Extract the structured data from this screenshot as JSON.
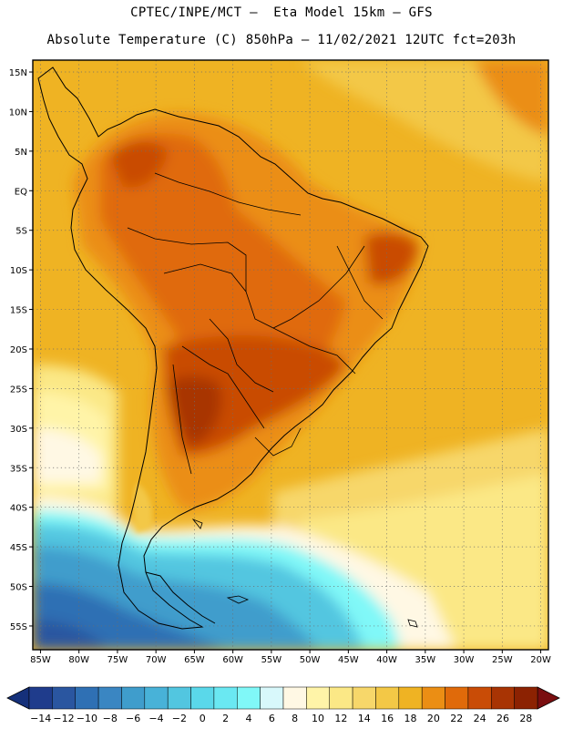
{
  "header": {
    "line1": "CPTEC/INPE/MCT –  Eta Model 15km – GFS",
    "line2": "Absolute Temperature (C) 850hPa – 11/02/2021 12UTC fct=203h"
  },
  "map": {
    "lat_labels": [
      "15N",
      "10N",
      "5N",
      "EQ",
      "5S",
      "10S",
      "15S",
      "20S",
      "25S",
      "30S",
      "35S",
      "40S",
      "45S",
      "50S",
      "55S"
    ],
    "lat_values": [
      15,
      10,
      5,
      0,
      -5,
      -10,
      -15,
      -20,
      -25,
      -30,
      -35,
      -40,
      -45,
      -50,
      -55
    ],
    "lon_labels": [
      "85W",
      "80W",
      "75W",
      "70W",
      "65W",
      "60W",
      "55W",
      "50W",
      "45W",
      "40W",
      "35W",
      "30W",
      "25W",
      "20W"
    ],
    "lon_values": [
      -85,
      -80,
      -75,
      -70,
      -65,
      -60,
      -55,
      -50,
      -45,
      -40,
      -35,
      -30,
      -25,
      -20
    ],
    "lon_range": [
      -86,
      -19
    ],
    "lat_range": [
      -58,
      16.5
    ]
  },
  "colorbar": {
    "labels": [
      "-14",
      "-12",
      "-10",
      "-8",
      "-6",
      "-4",
      "-2",
      "0",
      "2",
      "4",
      "6",
      "8",
      "10",
      "12",
      "14",
      "16",
      "18",
      "20",
      "22",
      "24",
      "26",
      "28"
    ],
    "colors": [
      "#1f3c8c",
      "#2a56a0",
      "#2f70b4",
      "#3a86c2",
      "#3f9dcc",
      "#48b2d8",
      "#52c6e0",
      "#5ad8ea",
      "#6ae8f2",
      "#80f8f8",
      "#d8f8fb",
      "#fff8e4",
      "#fff4a8",
      "#fbe886",
      "#f7d76a",
      "#f3c846",
      "#efb323",
      "#eb8e14",
      "#e06a0a",
      "#c94c06",
      "#a83404",
      "#8c2202"
    ],
    "under_color": "#15307a",
    "over_color": "#7a0e10"
  }
}
